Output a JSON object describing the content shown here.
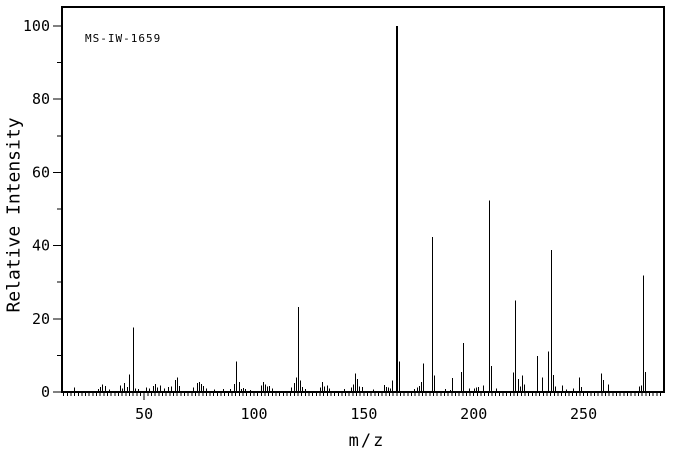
{
  "annotation": "MS-IW-1659",
  "colors": {
    "foreground": "#000000",
    "background": "#ffffff"
  },
  "chart_data": {
    "type": "bar",
    "subtype": "mass-spectrum-stick-plot",
    "title": "",
    "xlabel": "m/z",
    "ylabel": "Relative Intensity",
    "xlim": [
      12.6,
      286.6
    ],
    "ylim": [
      0,
      105.2
    ],
    "grid": false,
    "legend": "none",
    "x_major_ticks": [
      50,
      100,
      150,
      200,
      250
    ],
    "x_minor_step": 1.6667,
    "y_major_ticks": [
      0,
      20,
      40,
      60,
      80,
      100
    ],
    "y_minor_ticks": [
      10,
      30,
      50,
      70,
      90
    ],
    "base_peak_mz": 165,
    "peaks": [
      [
        18,
        1.2
      ],
      [
        29,
        0.8
      ],
      [
        30,
        1.4
      ],
      [
        31,
        2.0
      ],
      [
        32,
        1.6
      ],
      [
        34,
        0.7
      ],
      [
        39,
        1.8
      ],
      [
        40,
        1.0
      ],
      [
        41,
        2.5
      ],
      [
        42,
        1.4
      ],
      [
        43,
        4.8
      ],
      [
        45,
        17.6
      ],
      [
        46,
        1.0
      ],
      [
        47,
        0.8
      ],
      [
        51,
        1.2
      ],
      [
        52,
        1.0
      ],
      [
        54,
        1.6
      ],
      [
        55,
        2.2
      ],
      [
        56,
        1.2
      ],
      [
        57,
        1.8
      ],
      [
        59,
        1.0
      ],
      [
        61,
        1.3
      ],
      [
        62,
        1.5
      ],
      [
        64,
        3.3
      ],
      [
        65,
        4.0
      ],
      [
        66,
        1.6
      ],
      [
        72,
        1.2
      ],
      [
        74,
        2.5
      ],
      [
        75,
        2.8
      ],
      [
        76,
        2.2
      ],
      [
        77,
        1.6
      ],
      [
        78,
        1.0
      ],
      [
        82,
        0.7
      ],
      [
        86,
        0.8
      ],
      [
        89,
        0.8
      ],
      [
        91,
        2.2
      ],
      [
        92,
        8.4
      ],
      [
        93,
        2.7
      ],
      [
        94,
        0.8
      ],
      [
        95,
        1.1
      ],
      [
        96,
        0.8
      ],
      [
        98,
        0.6
      ],
      [
        103,
        1.8
      ],
      [
        104,
        2.8
      ],
      [
        105,
        2.1
      ],
      [
        106,
        1.5
      ],
      [
        107,
        1.6
      ],
      [
        108,
        1.0
      ],
      [
        117,
        1.2
      ],
      [
        118,
        2.5
      ],
      [
        119,
        4.0
      ],
      [
        120,
        23.2
      ],
      [
        121,
        3.1
      ],
      [
        122,
        1.4
      ],
      [
        123,
        0.8
      ],
      [
        130,
        1.2
      ],
      [
        131,
        2.8
      ],
      [
        132,
        1.5
      ],
      [
        133,
        1.8
      ],
      [
        134,
        1.0
      ],
      [
        141,
        0.8
      ],
      [
        144,
        1.2
      ],
      [
        145,
        2.0
      ],
      [
        146,
        5.1
      ],
      [
        147,
        3.6
      ],
      [
        148,
        1.5
      ],
      [
        149,
        1.3
      ],
      [
        154,
        0.7
      ],
      [
        159,
        1.9
      ],
      [
        160,
        1.4
      ],
      [
        161,
        1.2
      ],
      [
        162,
        1.0
      ],
      [
        163,
        3.1
      ],
      [
        165,
        100.0
      ],
      [
        166,
        8.4
      ],
      [
        173,
        0.8
      ],
      [
        174,
        1.2
      ],
      [
        175,
        1.6
      ],
      [
        176,
        2.7
      ],
      [
        177,
        7.8
      ],
      [
        181,
        42.3
      ],
      [
        182,
        4.5
      ],
      [
        187,
        0.8
      ],
      [
        189,
        0.6
      ],
      [
        190,
        3.8
      ],
      [
        194,
        5.5
      ],
      [
        195,
        13.4
      ],
      [
        198,
        1.0
      ],
      [
        200,
        1.0
      ],
      [
        201,
        1.2
      ],
      [
        202,
        1.3
      ],
      [
        204,
        1.8
      ],
      [
        207,
        52.3
      ],
      [
        208,
        7.1
      ],
      [
        210,
        1.0
      ],
      [
        218,
        5.3
      ],
      [
        219,
        25.0
      ],
      [
        220,
        3.5
      ],
      [
        221,
        1.5
      ],
      [
        222,
        4.5
      ],
      [
        223,
        2.0
      ],
      [
        229,
        9.8
      ],
      [
        231,
        4.0
      ],
      [
        234,
        11.0
      ],
      [
        235,
        38.8
      ],
      [
        236,
        4.6
      ],
      [
        237,
        1.5
      ],
      [
        240,
        1.8
      ],
      [
        242,
        0.7
      ],
      [
        245,
        1.0
      ],
      [
        248,
        3.9
      ],
      [
        249,
        1.3
      ],
      [
        258,
        5.1
      ],
      [
        259,
        3.3
      ],
      [
        261,
        2.1
      ],
      [
        275,
        1.5
      ],
      [
        276,
        1.8
      ],
      [
        277,
        31.8
      ],
      [
        278,
        5.5
      ]
    ]
  }
}
